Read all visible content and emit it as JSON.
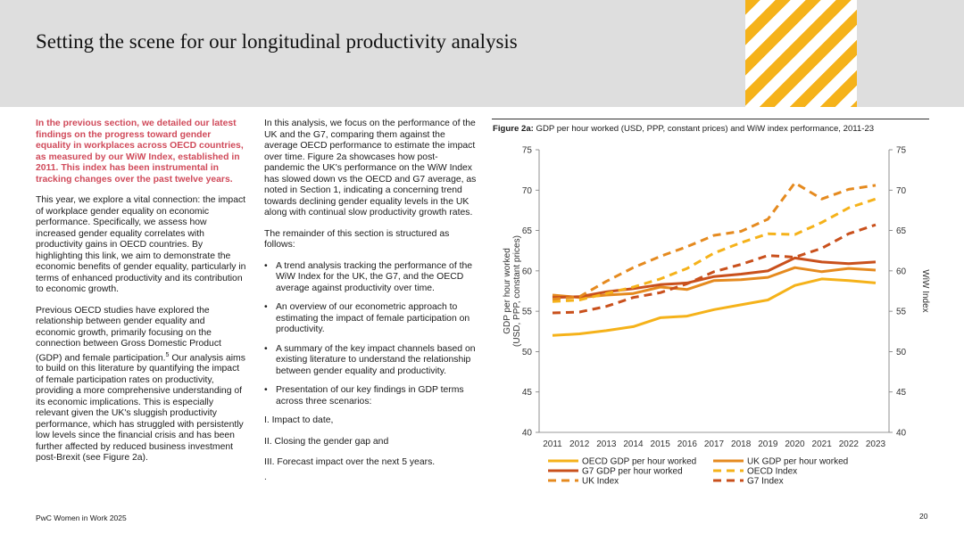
{
  "header": {
    "title": "Setting the scene for our longitudinal productivity analysis"
  },
  "column1": {
    "intro": "In the previous section, we detailed our latest findings on the progress toward gender equality in workplaces across OECD countries, as measured by our WiW Index, established in 2011. This index has been instrumental in tracking changes over the past twelve years.",
    "para1": "This year, we explore a vital connection: the impact of workplace gender equality on economic performance. Specifically, we assess how increased gender equality correlates with productivity gains in OECD countries. By highlighting this link, we aim to demonstrate the economic benefits of gender equality, particularly in terms of enhanced productivity and its contribution to economic growth.",
    "para2a": "Previous OECD studies have explored the relationship between gender equality and economic growth, primarily focusing on the connection between Gross Domestic Product (GDP) and female participation.",
    "footnote": "5",
    "para2b": " Our analysis aims to build on this literature by quantifying the impact of female participation rates on productivity, providing a more comprehensive understanding of its economic implications. This is especially relevant given the UK's sluggish productivity performance, which has struggled with persistently low levels since the financial crisis and has been further affected by reduced business investment post-Brexit (see Figure 2a)."
  },
  "column2": {
    "para1": "In this analysis, we focus on the performance of the UK and the G7, comparing them against the average OECD performance to estimate the impact over time. Figure 2a showcases how post-pandemic the UK's performance on the WiW Index has slowed down vs the OECD and G7 average, as noted in Section 1, indicating a concerning trend towards declining gender equality levels in the UK along with continual slow productivity growth rates.",
    "para2": "The remainder of this section is structured as follows:",
    "bullets": [
      "A trend analysis tracking the performance of the WiW Index for the UK, the G7, and the OECD average against productivity over time.",
      "An overview of our econometric approach to estimating the impact of female participation on productivity.",
      "A summary of the key impact channels based on existing literature to understand the relationship between gender equality and productivity.",
      "Presentation of our key findings in GDP terms across three scenarios:"
    ],
    "scenarios": [
      "I. Impact to date,",
      "II. Closing the gender gap and",
      "III. Forecast impact over the next 5 years."
    ],
    "trailing": "."
  },
  "figure": {
    "label": "Figure 2a:",
    "caption": " GDP per hour worked (USD, PPP, constant prices) and WiW index performance, 2011-23"
  },
  "chart_data": {
    "type": "line",
    "x": [
      2011,
      2012,
      2013,
      2014,
      2015,
      2016,
      2017,
      2018,
      2019,
      2020,
      2021,
      2022,
      2023
    ],
    "ylabel_line1": "GDP per hour worked",
    "ylabel_line2": "(USD, PPP, constant prices)",
    "y2label": "WiW Index",
    "ylim": [
      40,
      75
    ],
    "y2lim": [
      40,
      75
    ],
    "yticks": [
      40,
      45,
      50,
      55,
      60,
      65,
      70,
      75
    ],
    "legend_position": "bottom",
    "series": [
      {
        "name": "OECD GDP per hour worked",
        "color": "#f5b21a",
        "dash": false,
        "values": [
          52.0,
          52.2,
          52.6,
          53.1,
          54.2,
          54.4,
          55.2,
          55.8,
          56.4,
          58.2,
          59.0,
          58.8,
          58.5
        ]
      },
      {
        "name": "UK GDP per hour worked",
        "color": "#e58a1f",
        "dash": false,
        "values": [
          57.0,
          56.7,
          57.0,
          57.2,
          58.0,
          57.7,
          58.8,
          58.9,
          59.2,
          60.4,
          59.9,
          60.3,
          60.1
        ]
      },
      {
        "name": "G7 GDP per hour worked",
        "color": "#c9501c",
        "dash": false,
        "values": [
          56.7,
          56.8,
          57.4,
          57.8,
          58.3,
          58.5,
          59.3,
          59.6,
          60.0,
          61.6,
          61.1,
          60.9,
          61.1
        ]
      },
      {
        "name": "OECD Index",
        "color": "#f5b21a",
        "dash": true,
        "values": [
          56.2,
          56.4,
          57.2,
          58.0,
          59.0,
          60.3,
          62.2,
          63.5,
          64.6,
          64.5,
          66.0,
          67.8,
          68.9
        ]
      },
      {
        "name": "UK Index",
        "color": "#e58a1f",
        "dash": true,
        "values": [
          56.5,
          56.8,
          58.7,
          60.4,
          61.8,
          63.0,
          64.4,
          64.9,
          66.4,
          70.9,
          68.9,
          70.1,
          70.6
        ]
      },
      {
        "name": "G7 Index",
        "color": "#c9501c",
        "dash": true,
        "values": [
          54.8,
          54.9,
          55.6,
          56.7,
          57.3,
          58.4,
          59.9,
          60.8,
          61.9,
          61.7,
          62.8,
          64.6,
          65.7
        ]
      }
    ]
  },
  "footer": {
    "left": "PwC Women in Work 2025",
    "page": "20"
  }
}
